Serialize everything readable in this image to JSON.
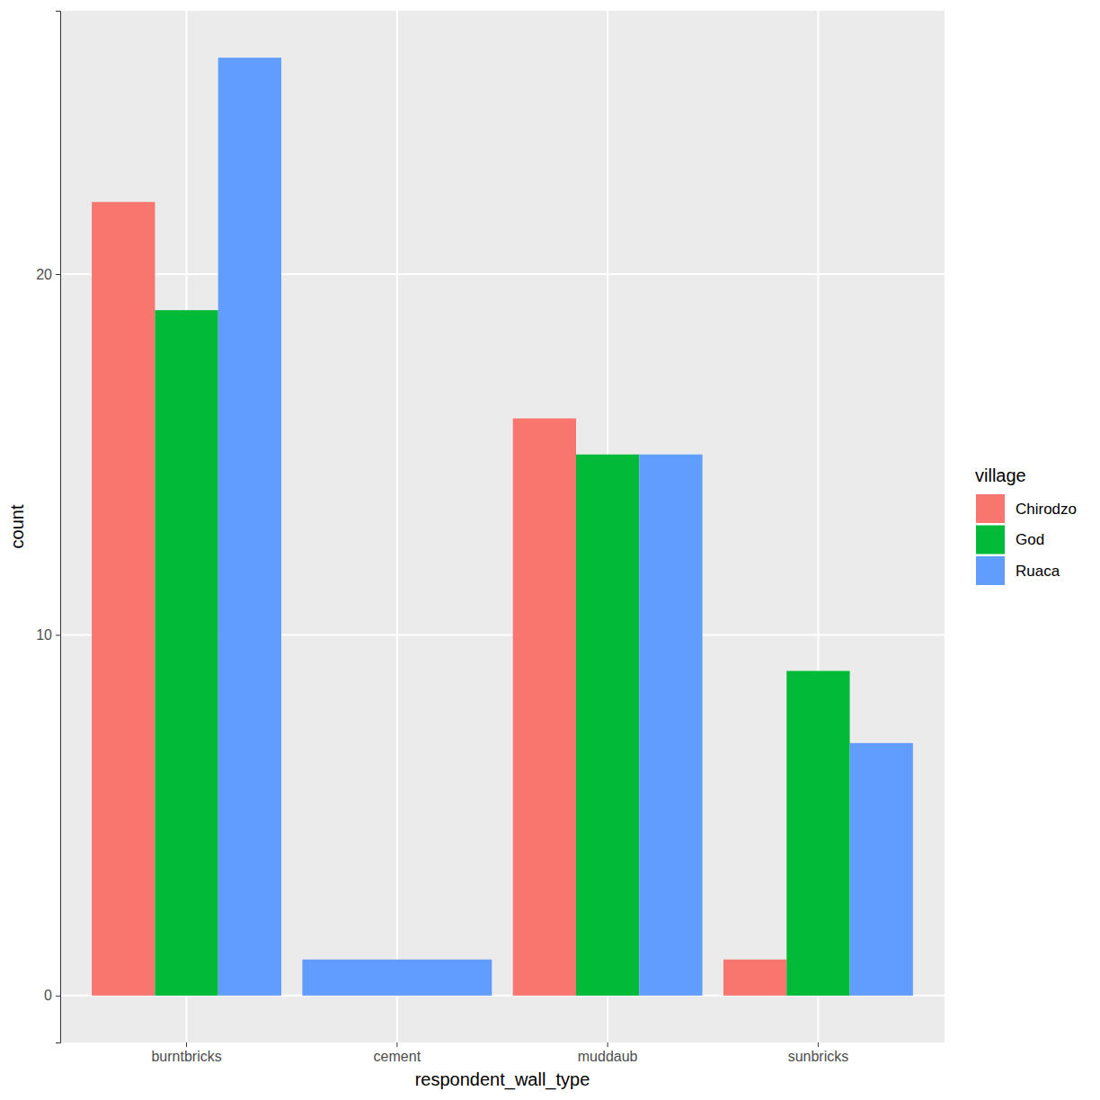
{
  "chart_data": {
    "type": "bar",
    "x_label": "respondent_wall_type",
    "y_label": "count",
    "legend_title": "village",
    "categories": [
      "burntbricks",
      "cement",
      "muddaub",
      "sunbricks"
    ],
    "series": [
      {
        "name": "Chirodzo",
        "color": "#F8766D",
        "values": [
          22,
          null,
          16,
          1
        ]
      },
      {
        "name": "God",
        "color": "#00BA38",
        "values": [
          19,
          null,
          15,
          9
        ]
      },
      {
        "name": "Ruaca",
        "color": "#619CFF",
        "values": [
          26,
          1,
          15,
          7
        ]
      }
    ],
    "ylim": [
      -1.3,
      27.3
    ],
    "yticks": [
      0,
      10,
      20
    ],
    "grid": true,
    "legend": "right"
  }
}
